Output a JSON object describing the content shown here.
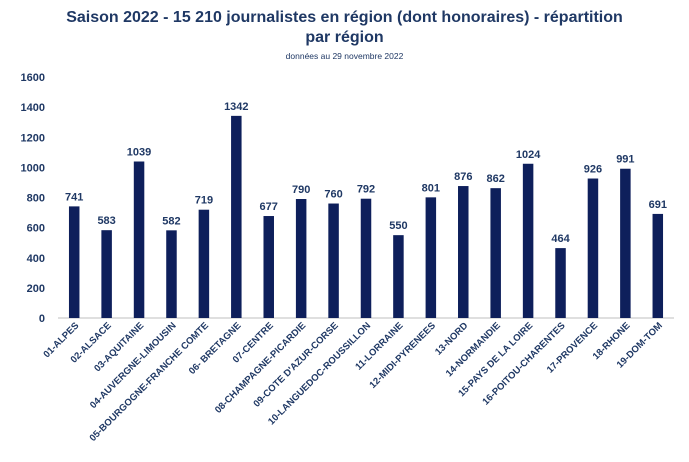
{
  "chart_data": {
    "type": "bar",
    "title_line1": "Saison 2022 - 15 210 journalistes en région (dont honoraires) - répartition",
    "title_line2": "par région",
    "subtitle": "données au 29 novembre 2022",
    "categories": [
      "01-ALPES",
      "02-ALSACE",
      "03-AQUITAINE",
      "04-AUVERGNE-LIMOUSIN",
      "05-BOURGOGNE-FRANCHE COMTE",
      "06- BRETAGNE",
      "07-CENTRE",
      "08-CHAMPAGNE-PICARDIE",
      "09-COTE D'AZUR-CORSE",
      "10-LANGUEDOC-ROUSSILLON",
      "11-LORRAINE",
      "12-MIDI-PYRENEES",
      "13-NORD",
      "14-NORMANDIE",
      "15-PAYS DE LA LOIRE",
      "16-POITOU-CHARENTES",
      "17-PROVENCE",
      "18-RHONE",
      "19-DOM-TOM"
    ],
    "values": [
      741,
      583,
      1039,
      582,
      719,
      1342,
      677,
      790,
      760,
      792,
      550,
      801,
      876,
      862,
      1024,
      464,
      926,
      991,
      691
    ],
    "ylim": [
      0,
      1600
    ],
    "yticks": [
      0,
      200,
      400,
      600,
      800,
      1000,
      1200,
      1400,
      1600
    ],
    "grid": false,
    "legend": "none",
    "colors": {
      "bar": "#0e1f5b",
      "text": "#1f3864"
    }
  }
}
